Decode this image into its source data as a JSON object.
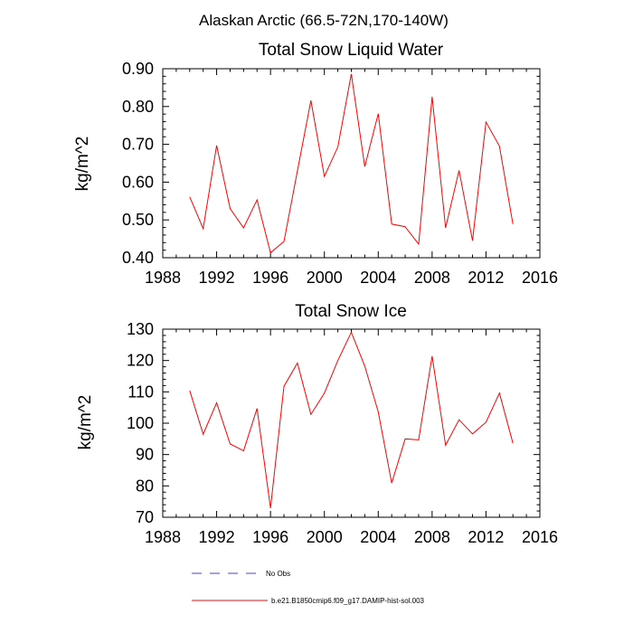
{
  "suptitle": "Alaskan Arctic (66.5-72N,170-140W)",
  "chart_data": [
    {
      "type": "line",
      "title": "Total Snow Liquid Water",
      "xlabel": "",
      "ylabel": "kg/m^2",
      "xlim": [
        1988,
        2016
      ],
      "ylim": [
        0.4,
        0.9
      ],
      "xticks": [
        1988,
        1992,
        1996,
        2000,
        2004,
        2008,
        2012,
        2016
      ],
      "xtick_labels": [
        "1988",
        "1992",
        "1996",
        "2000",
        "2004",
        "2008",
        "2012",
        "2016"
      ],
      "yticks": [
        0.4,
        0.5,
        0.6,
        0.7,
        0.8,
        0.9
      ],
      "ytick_labels": [
        "0.40",
        "0.50",
        "0.60",
        "0.70",
        "0.80",
        "0.90"
      ],
      "grid": false,
      "series": [
        {
          "name": "b.e21.B1850cmip6.f09_g17.DAMIP-hist-sol.003",
          "color": "#ff0000",
          "x": [
            1990,
            1991,
            1992,
            1993,
            1994,
            1995,
            1996,
            1997,
            1998,
            1999,
            2000,
            2001,
            2002,
            2003,
            2004,
            2005,
            2006,
            2007,
            2008,
            2009,
            2010,
            2011,
            2012,
            2013,
            2014
          ],
          "y": [
            0.561,
            0.477,
            0.697,
            0.53,
            0.479,
            0.553,
            0.413,
            0.443,
            0.63,
            0.816,
            0.615,
            0.693,
            0.886,
            0.641,
            0.781,
            0.489,
            0.482,
            0.436,
            0.826,
            0.479,
            0.631,
            0.445,
            0.759,
            0.695,
            0.489
          ]
        }
      ]
    },
    {
      "type": "line",
      "title": "Total Snow Ice",
      "xlabel": "",
      "ylabel": "kg/m^2",
      "xlim": [
        1988,
        2016
      ],
      "ylim": [
        70,
        130
      ],
      "xticks": [
        1988,
        1992,
        1996,
        2000,
        2004,
        2008,
        2012,
        2016
      ],
      "xtick_labels": [
        "1988",
        "1992",
        "1996",
        "2000",
        "2004",
        "2008",
        "2012",
        "2016"
      ],
      "yticks": [
        70,
        80,
        90,
        100,
        110,
        120,
        130
      ],
      "ytick_labels": [
        "70",
        "80",
        "90",
        "100",
        "110",
        "120",
        "130"
      ],
      "grid": false,
      "series": [
        {
          "name": "b.e21.B1850cmip6.f09_g17.DAMIP-hist-sol.003",
          "color": "#ff0000",
          "x": [
            1990,
            1991,
            1992,
            1993,
            1994,
            1995,
            1996,
            1997,
            1998,
            1999,
            2000,
            2001,
            2002,
            2003,
            2004,
            2005,
            2006,
            2007,
            2008,
            2009,
            2010,
            2011,
            2012,
            2013,
            2014
          ],
          "y": [
            110.4,
            96.5,
            106.5,
            93.4,
            91.2,
            104.7,
            72.9,
            111.8,
            119.2,
            102.8,
            109.6,
            120.0,
            129.0,
            118.2,
            103.6,
            80.9,
            95.0,
            94.7,
            121.4,
            93.0,
            101.1,
            96.6,
            100.3,
            109.6,
            93.6
          ]
        }
      ]
    }
  ],
  "legend": {
    "position": "bottom",
    "items": [
      {
        "label": "No Obs",
        "color": "#4444cc",
        "style": "dashed"
      },
      {
        "label": "b.e21.B1850cmip6.f09_g17.DAMIP-hist-sol.003",
        "color": "#ff0000",
        "style": "solid"
      }
    ]
  }
}
